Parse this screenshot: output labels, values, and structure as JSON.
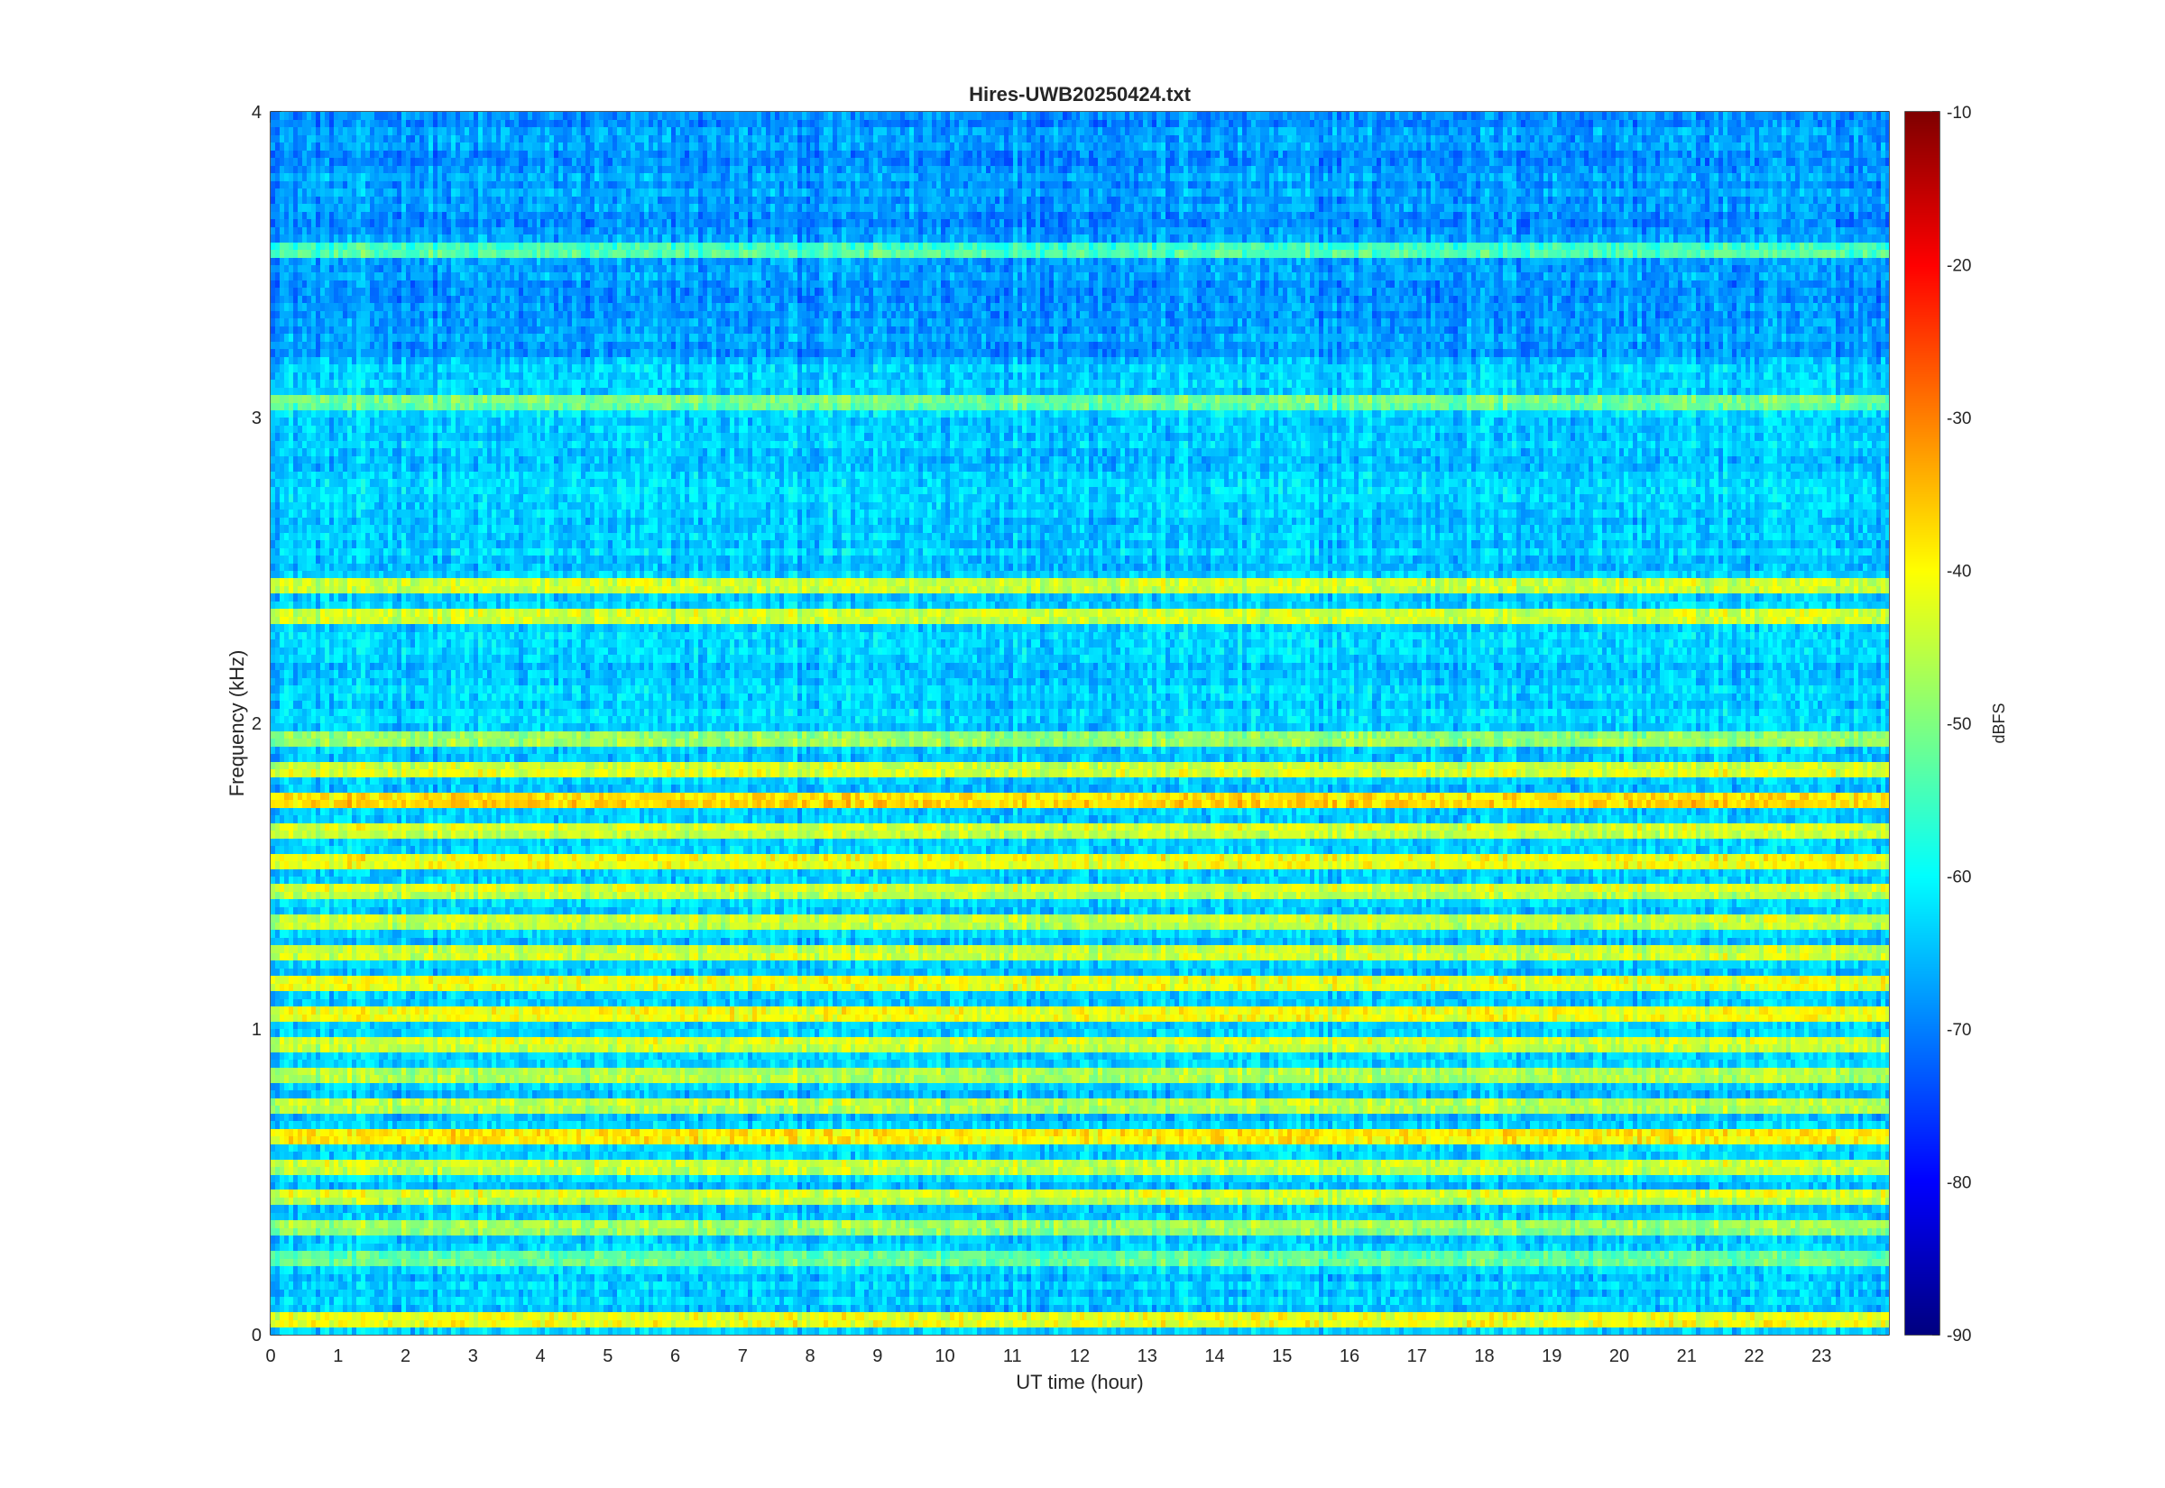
{
  "chart_data": {
    "type": "heatmap",
    "title": "Hires-UWB20250424.txt",
    "xlabel": "UT time (hour)",
    "ylabel": "Frequency (kHz)",
    "xlim": [
      0,
      24
    ],
    "ylim": [
      0,
      4
    ],
    "x_ticks": [
      0,
      1,
      2,
      3,
      4,
      5,
      6,
      7,
      8,
      9,
      10,
      11,
      12,
      13,
      14,
      15,
      16,
      17,
      18,
      19,
      20,
      21,
      22,
      23
    ],
    "y_ticks": [
      0,
      1,
      2,
      3,
      4
    ],
    "colorbar": {
      "label": "dBFS",
      "range": [
        -90,
        -10
      ],
      "ticks": [
        -10,
        -20,
        -30,
        -40,
        -50,
        -60,
        -70,
        -80,
        -90
      ],
      "colormap": "jet",
      "colors": [
        "#00008f",
        "#0000ff",
        "#00ffff",
        "#ffff00",
        "#ff0000",
        "#800000"
      ]
    },
    "bands": [
      {
        "freq_khz": 0.05,
        "level_dbfs": -42
      },
      {
        "freq_khz": 0.25,
        "level_dbfs": -52
      },
      {
        "freq_khz": 0.35,
        "level_dbfs": -48
      },
      {
        "freq_khz": 0.45,
        "level_dbfs": -44
      },
      {
        "freq_khz": 0.55,
        "level_dbfs": -45
      },
      {
        "freq_khz": 0.65,
        "level_dbfs": -38
      },
      {
        "freq_khz": 0.75,
        "level_dbfs": -46
      },
      {
        "freq_khz": 0.85,
        "level_dbfs": -46
      },
      {
        "freq_khz": 0.95,
        "level_dbfs": -44
      },
      {
        "freq_khz": 1.05,
        "level_dbfs": -40
      },
      {
        "freq_khz": 1.15,
        "level_dbfs": -41
      },
      {
        "freq_khz": 1.25,
        "level_dbfs": -45
      },
      {
        "freq_khz": 1.35,
        "level_dbfs": -45
      },
      {
        "freq_khz": 1.45,
        "level_dbfs": -44
      },
      {
        "freq_khz": 1.55,
        "level_dbfs": -40
      },
      {
        "freq_khz": 1.65,
        "level_dbfs": -44
      },
      {
        "freq_khz": 1.75,
        "level_dbfs": -38
      },
      {
        "freq_khz": 1.85,
        "level_dbfs": -43
      },
      {
        "freq_khz": 1.95,
        "level_dbfs": -48
      },
      {
        "freq_khz": 2.35,
        "level_dbfs": -44
      },
      {
        "freq_khz": 2.45,
        "level_dbfs": -44
      },
      {
        "freq_khz": 3.05,
        "level_dbfs": -52
      },
      {
        "freq_khz": 3.55,
        "level_dbfs": -55
      }
    ]
  }
}
